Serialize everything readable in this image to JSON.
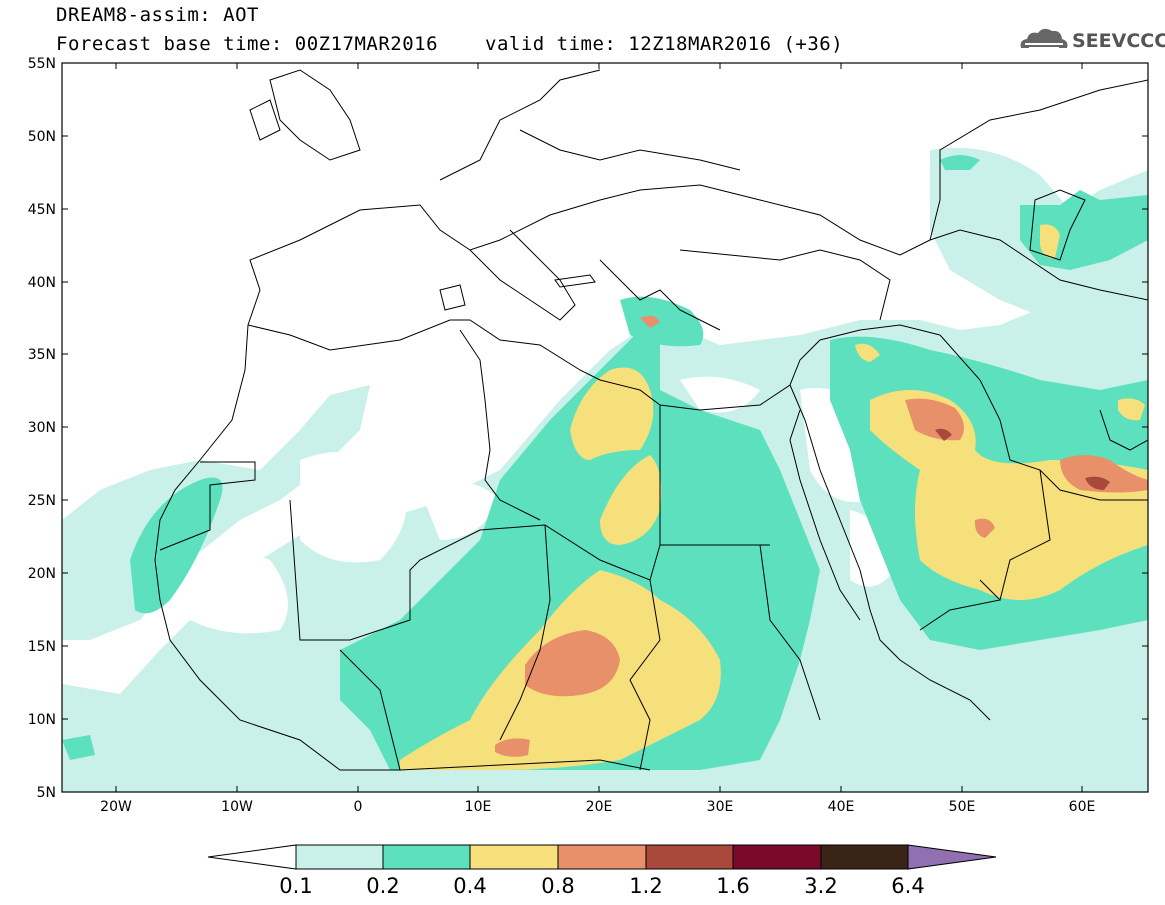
{
  "header": {
    "title": "DREAM8-assim: AOT",
    "base_time": "Forecast base time: 00Z17MAR2016",
    "valid_time": "valid time: 12Z18MAR2016 (+36)"
  },
  "logo": {
    "text": "SEEVCCC",
    "icon": "cloud-icon"
  },
  "map": {
    "projection": "equirectangular",
    "lon_range": [
      -25,
      65
    ],
    "lat_range": [
      5,
      55
    ],
    "lat_ticks": [
      "55N",
      "50N",
      "45N",
      "40N",
      "35N",
      "30N",
      "25N",
      "20N",
      "15N",
      "10N",
      "5N"
    ],
    "lon_ticks": [
      "20W",
      "10W",
      "0",
      "10E",
      "20E",
      "30E",
      "40E",
      "50E",
      "60E"
    ]
  },
  "legend": {
    "labels": [
      "0.1",
      "0.2",
      "0.4",
      "0.8",
      "1.2",
      "1.6",
      "3.2",
      "6.4"
    ],
    "colors": [
      "#ffffff",
      "#c9f1ea",
      "#5de0bd",
      "#f5e07c",
      "#e8906a",
      "#a8493c",
      "#7a0a2a",
      "#3a2417",
      "#9070b0"
    ]
  },
  "colors": {
    "lvl1": "#c9f1ea",
    "lvl2": "#5de0bd",
    "lvl3": "#f5e07c",
    "lvl4": "#e8906a",
    "lvl5": "#a8493c"
  }
}
